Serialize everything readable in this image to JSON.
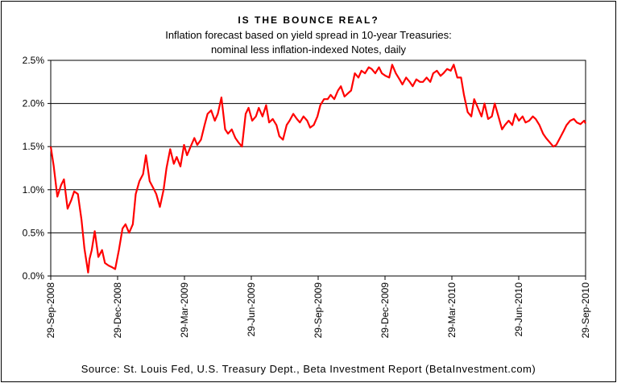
{
  "chart_data": {
    "type": "line",
    "title": "IS THE BOUNCE REAL?",
    "subtitle_line1": "Inflation forecast based on yield spread in 10-year Treasuries:",
    "subtitle_line2": "nominal less inflation-indexed Notes, daily",
    "source": "Source: St. Louis Fed, U.S. Treasury Dept., Beta Investment Report (BetaInvestment.com)",
    "y_unit": "%",
    "ylim": [
      0,
      2.5
    ],
    "y_ticks": [
      "0.0%",
      "0.5%",
      "1.0%",
      "1.5%",
      "2.0%",
      "2.5%"
    ],
    "x_ticks": [
      "29-Sep-2008",
      "29-Dec-2008",
      "29-Mar-2009",
      "29-Jun-2009",
      "29-Sep-2009",
      "29-Dec-2009",
      "29-Mar-2010",
      "29-Jun-2010",
      "29-Sep-2010"
    ],
    "grid": true,
    "line_color": "#ff0000",
    "series": [
      {
        "x": [
          "2008-09-29",
          "2008-10-03",
          "2008-10-08",
          "2008-10-13",
          "2008-10-17",
          "2008-10-22",
          "2008-10-27",
          "2008-10-31",
          "2008-11-05",
          "2008-11-10",
          "2008-11-14",
          "2008-11-19",
          "2008-11-21",
          "2008-11-24",
          "2008-11-28",
          "2008-12-03",
          "2008-12-08",
          "2008-12-12",
          "2008-12-17",
          "2008-12-22",
          "2008-12-26",
          "2008-12-31",
          "2009-01-05",
          "2009-01-09",
          "2009-01-14",
          "2009-01-19",
          "2009-01-23",
          "2009-01-28",
          "2009-02-02",
          "2009-02-06",
          "2009-02-11",
          "2009-02-16",
          "2009-02-20",
          "2009-02-25",
          "2009-03-02",
          "2009-03-06",
          "2009-03-11",
          "2009-03-16",
          "2009-03-20",
          "2009-03-25",
          "2009-03-30",
          "2009-04-03",
          "2009-04-08",
          "2009-04-13",
          "2009-04-17",
          "2009-04-22",
          "2009-04-27",
          "2009-05-01",
          "2009-05-06",
          "2009-05-11",
          "2009-05-15",
          "2009-05-20",
          "2009-05-25",
          "2009-05-29",
          "2009-06-03",
          "2009-06-08",
          "2009-06-12",
          "2009-06-17",
          "2009-06-22",
          "2009-06-26",
          "2009-07-01",
          "2009-07-06",
          "2009-07-10",
          "2009-07-15",
          "2009-07-20",
          "2009-07-24",
          "2009-07-29",
          "2009-08-03",
          "2009-08-07",
          "2009-08-12",
          "2009-08-17",
          "2009-08-21",
          "2009-08-26",
          "2009-08-31",
          "2009-09-04",
          "2009-09-09",
          "2009-09-14",
          "2009-09-18",
          "2009-09-23",
          "2009-09-28",
          "2009-10-02",
          "2009-10-07",
          "2009-10-12",
          "2009-10-16",
          "2009-10-21",
          "2009-10-26",
          "2009-10-30",
          "2009-11-04",
          "2009-11-09",
          "2009-11-13",
          "2009-11-18",
          "2009-11-23",
          "2009-11-27",
          "2009-12-02",
          "2009-12-07",
          "2009-12-11",
          "2009-12-16",
          "2009-12-21",
          "2009-12-25",
          "2009-12-30",
          "2010-01-04",
          "2010-01-08",
          "2010-01-13",
          "2010-01-18",
          "2010-01-22",
          "2010-01-27",
          "2010-02-01",
          "2010-02-05",
          "2010-02-10",
          "2010-02-15",
          "2010-02-19",
          "2010-02-24",
          "2010-03-01",
          "2010-03-05",
          "2010-03-10",
          "2010-03-15",
          "2010-03-19",
          "2010-03-24",
          "2010-03-29",
          "2010-04-02",
          "2010-04-07",
          "2010-04-12",
          "2010-04-16",
          "2010-04-21",
          "2010-04-26",
          "2010-04-30",
          "2010-05-05",
          "2010-05-10",
          "2010-05-14",
          "2010-05-19",
          "2010-05-24",
          "2010-05-28",
          "2010-06-02",
          "2010-06-07",
          "2010-06-11",
          "2010-06-16",
          "2010-06-21",
          "2010-06-25",
          "2010-06-30",
          "2010-07-05",
          "2010-07-09",
          "2010-07-14",
          "2010-07-19",
          "2010-07-23",
          "2010-07-28",
          "2010-08-02",
          "2010-08-06",
          "2010-08-11",
          "2010-08-16",
          "2010-08-20",
          "2010-08-25",
          "2010-08-30",
          "2010-09-03",
          "2010-09-08",
          "2010-09-13",
          "2010-09-17",
          "2010-09-22",
          "2010-09-27",
          "2010-10-01"
        ],
        "values": [
          1.5,
          1.28,
          0.92,
          1.05,
          1.12,
          0.78,
          0.88,
          0.98,
          0.95,
          0.65,
          0.32,
          0.04,
          0.2,
          0.3,
          0.52,
          0.22,
          0.3,
          0.15,
          0.12,
          0.1,
          0.08,
          0.3,
          0.55,
          0.6,
          0.5,
          0.6,
          0.95,
          1.1,
          1.18,
          1.4,
          1.1,
          1.02,
          0.95,
          0.8,
          1.0,
          1.25,
          1.47,
          1.3,
          1.38,
          1.27,
          1.52,
          1.4,
          1.5,
          1.6,
          1.52,
          1.58,
          1.75,
          1.88,
          1.92,
          1.8,
          1.88,
          2.07,
          1.7,
          1.65,
          1.7,
          1.6,
          1.55,
          1.5,
          1.88,
          1.95,
          1.8,
          1.85,
          1.95,
          1.85,
          1.98,
          1.78,
          1.82,
          1.75,
          1.62,
          1.58,
          1.75,
          1.8,
          1.88,
          1.82,
          1.78,
          1.85,
          1.8,
          1.72,
          1.75,
          1.85,
          1.98,
          2.05,
          2.05,
          2.1,
          2.05,
          2.15,
          2.2,
          2.08,
          2.12,
          2.15,
          2.35,
          2.3,
          2.38,
          2.35,
          2.42,
          2.4,
          2.35,
          2.42,
          2.35,
          2.32,
          2.3,
          2.45,
          2.35,
          2.28,
          2.22,
          2.3,
          2.25,
          2.2,
          2.28,
          2.25,
          2.25,
          2.3,
          2.25,
          2.35,
          2.38,
          2.32,
          2.35,
          2.4,
          2.38,
          2.45,
          2.3,
          2.3,
          2.1,
          1.9,
          1.85,
          2.05,
          1.95,
          1.85,
          2.0,
          1.82,
          1.85,
          2.0,
          1.85,
          1.7,
          1.75,
          1.8,
          1.75,
          1.88,
          1.8,
          1.85,
          1.78,
          1.8,
          1.85,
          1.82,
          1.75,
          1.65,
          1.6,
          1.55,
          1.5,
          1.52,
          1.6,
          1.68,
          1.75,
          1.8,
          1.82,
          1.78,
          1.76,
          1.8,
          1.77
        ]
      }
    ]
  }
}
